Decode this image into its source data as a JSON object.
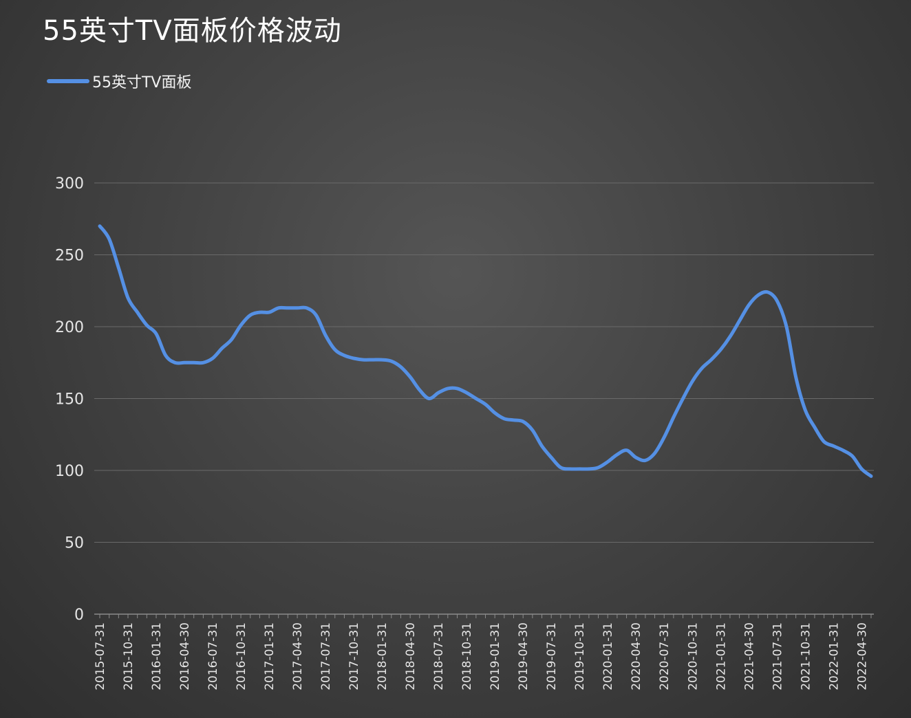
{
  "title": "55英寸TV面板价格波动",
  "legend": {
    "label": "55英寸TV面板"
  },
  "colors": {
    "series": "#5590e4",
    "grid": "#6a6a6a",
    "axis": "#8c8c8c"
  },
  "chart_data": {
    "type": "line",
    "title": "55英寸TV面板价格波动",
    "xlabel": "",
    "ylabel": "",
    "ylim": [
      0,
      300
    ],
    "yticks": [
      0,
      50,
      100,
      150,
      200,
      250,
      300
    ],
    "grid": true,
    "legend_position": "top-left",
    "x": [
      "2015-07-31",
      "2015-08-31",
      "2015-09-30",
      "2015-10-31",
      "2015-11-30",
      "2015-12-31",
      "2016-01-31",
      "2016-02-29",
      "2016-03-31",
      "2016-04-30",
      "2016-05-31",
      "2016-06-30",
      "2016-07-31",
      "2016-08-31",
      "2016-09-30",
      "2016-10-31",
      "2016-11-30",
      "2016-12-31",
      "2017-01-31",
      "2017-02-28",
      "2017-03-31",
      "2017-04-30",
      "2017-05-31",
      "2017-06-30",
      "2017-07-31",
      "2017-08-31",
      "2017-09-30",
      "2017-10-31",
      "2017-11-30",
      "2017-12-31",
      "2018-01-31",
      "2018-02-28",
      "2018-03-31",
      "2018-04-30",
      "2018-05-31",
      "2018-06-30",
      "2018-07-31",
      "2018-08-31",
      "2018-09-30",
      "2018-10-31",
      "2018-11-30",
      "2018-12-31",
      "2019-01-31",
      "2019-02-28",
      "2019-03-31",
      "2019-04-30",
      "2019-05-31",
      "2019-06-30",
      "2019-07-31",
      "2019-08-31",
      "2019-09-30",
      "2019-10-31",
      "2019-11-30",
      "2019-12-31",
      "2020-01-31",
      "2020-02-29",
      "2020-03-31",
      "2020-04-30",
      "2020-05-31",
      "2020-06-30",
      "2020-07-31",
      "2020-08-31",
      "2020-09-30",
      "2020-10-31",
      "2020-11-30",
      "2020-12-31",
      "2021-01-31",
      "2021-02-28",
      "2021-03-31",
      "2021-04-30",
      "2021-05-31",
      "2021-06-30",
      "2021-07-31",
      "2021-08-31",
      "2021-09-30",
      "2021-10-31",
      "2021-11-30",
      "2021-12-31",
      "2022-01-31",
      "2022-02-28",
      "2022-03-31",
      "2022-04-30",
      "2022-05-31"
    ],
    "xtick_labels": [
      "2015-07-31",
      "2015-10-31",
      "2016-01-31",
      "2016-04-30",
      "2016-07-31",
      "2016-10-31",
      "2017-01-31",
      "2017-04-30",
      "2017-07-31",
      "2017-10-31",
      "2018-01-31",
      "2018-04-30",
      "2018-07-31",
      "2018-10-31",
      "2019-01-31",
      "2019-04-30",
      "2019-07-31",
      "2019-10-31",
      "2020-01-31",
      "2020-04-30",
      "2020-07-31",
      "2020-10-31",
      "2021-01-31",
      "2021-04-30",
      "2021-07-31",
      "2021-10-31",
      "2022-01-31",
      "2022-04-30"
    ],
    "series": [
      {
        "name": "55英寸TV面板",
        "values": [
          270,
          261,
          241,
          220,
          210,
          201,
          195,
          180,
          175,
          175,
          175,
          175,
          178,
          185,
          191,
          201,
          208,
          210,
          210,
          213,
          213,
          213,
          213,
          208,
          194,
          184,
          180,
          178,
          177,
          177,
          177,
          176,
          172,
          165,
          156,
          150,
          154,
          157,
          157,
          154,
          150,
          146,
          140,
          136,
          135,
          134,
          128,
          117,
          109,
          102,
          101,
          101,
          101,
          102,
          106,
          111,
          114,
          109,
          107,
          112,
          123,
          137,
          150,
          162,
          171,
          177,
          184,
          193,
          204,
          215,
          222,
          224,
          218,
          200,
          165,
          142,
          130,
          120,
          117,
          114,
          110,
          101,
          96
        ]
      }
    ]
  }
}
